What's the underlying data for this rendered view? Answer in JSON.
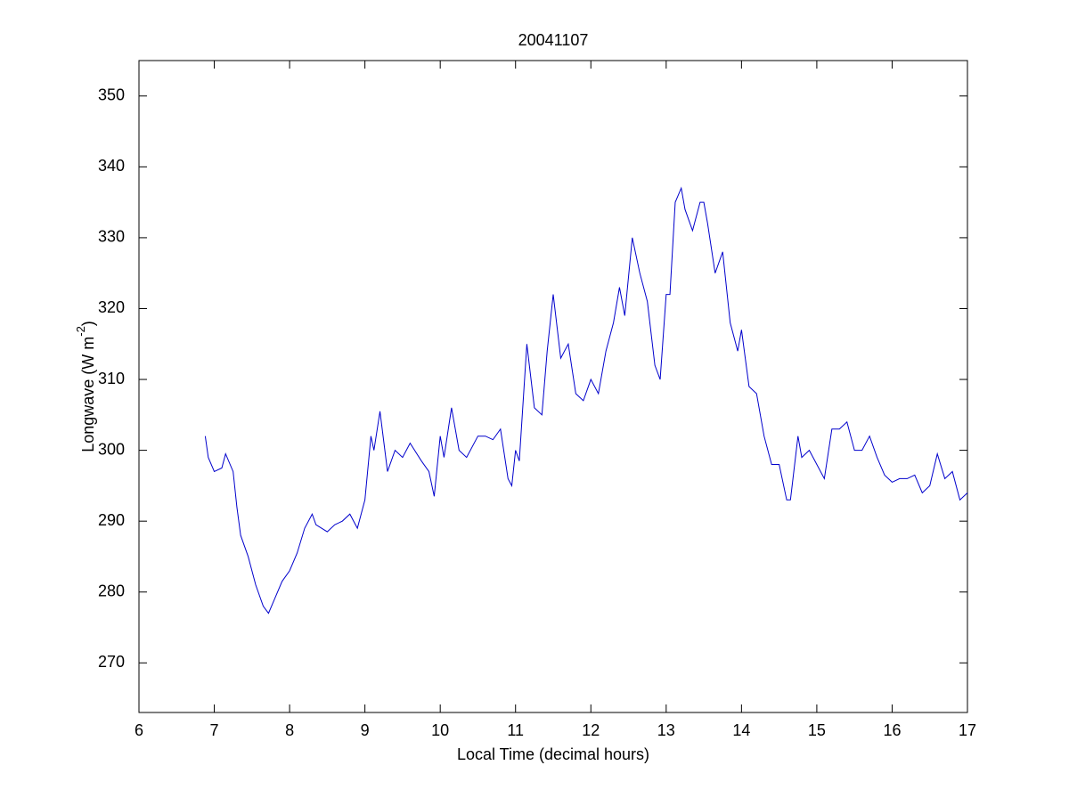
{
  "chart_data": {
    "type": "line",
    "title": "20041107",
    "xlabel": "Local Time (decimal hours)",
    "ylabel": [
      "Longwave (W m",
      "-2",
      ")"
    ],
    "xlim": [
      6,
      17
    ],
    "ylim": [
      263,
      355
    ],
    "xticks": [
      6,
      7,
      8,
      9,
      10,
      11,
      12,
      13,
      14,
      15,
      16,
      17
    ],
    "yticks": [
      270,
      280,
      290,
      300,
      310,
      320,
      330,
      340,
      350
    ],
    "grid": false,
    "x": [
      6.88,
      6.92,
      7.0,
      7.1,
      7.15,
      7.25,
      7.3,
      7.35,
      7.45,
      7.55,
      7.65,
      7.72,
      7.8,
      7.9,
      8.0,
      8.1,
      8.2,
      8.3,
      8.35,
      8.5,
      8.6,
      8.7,
      8.8,
      8.9,
      9.0,
      9.08,
      9.12,
      9.2,
      9.3,
      9.4,
      9.5,
      9.6,
      9.75,
      9.85,
      9.92,
      10.0,
      10.05,
      10.15,
      10.25,
      10.35,
      10.5,
      10.6,
      10.7,
      10.8,
      10.9,
      10.95,
      11.0,
      11.05,
      11.15,
      11.25,
      11.35,
      11.42,
      11.5,
      11.6,
      11.7,
      11.8,
      11.9,
      12.0,
      12.1,
      12.2,
      12.3,
      12.38,
      12.45,
      12.55,
      12.65,
      12.75,
      12.85,
      12.92,
      13.0,
      13.05,
      13.12,
      13.2,
      13.25,
      13.35,
      13.45,
      13.5,
      13.55,
      13.65,
      13.75,
      13.85,
      13.95,
      14.0,
      14.1,
      14.2,
      14.3,
      14.4,
      14.5,
      14.6,
      14.65,
      14.75,
      14.8,
      14.9,
      15.0,
      15.1,
      15.2,
      15.3,
      15.4,
      15.5,
      15.6,
      15.7,
      15.8,
      15.9,
      16.0,
      16.1,
      16.2,
      16.3,
      16.4,
      16.5,
      16.6,
      16.7,
      16.8,
      16.9,
      17.0
    ],
    "series": [
      {
        "color": "#0000cc",
        "values": [
          302,
          299,
          297,
          297.5,
          299.5,
          297,
          292,
          288,
          285,
          281,
          278,
          277,
          279,
          281.5,
          283,
          285.5,
          289,
          291,
          289.5,
          288.5,
          289.5,
          290,
          291,
          289,
          293,
          302,
          300,
          305.5,
          297,
          300,
          299,
          301,
          298.5,
          297,
          293.5,
          302,
          299,
          306,
          300,
          299,
          302,
          302,
          301.5,
          303,
          296,
          295,
          300,
          298.5,
          315,
          306,
          305,
          314,
          322,
          313,
          315,
          308,
          307,
          310,
          308,
          314,
          318,
          323,
          319,
          330,
          325,
          321,
          312,
          310,
          322,
          322,
          335,
          337,
          334,
          331,
          335,
          335,
          332,
          325,
          328,
          318,
          314,
          317,
          309,
          308,
          302,
          298,
          298,
          293,
          293,
          302,
          299,
          300,
          298,
          296,
          303,
          303,
          304,
          300,
          300,
          302,
          299,
          296.5,
          295.5,
          296,
          296,
          296.5,
          294,
          295,
          299.5,
          296,
          297,
          293,
          294
        ]
      }
    ]
  }
}
